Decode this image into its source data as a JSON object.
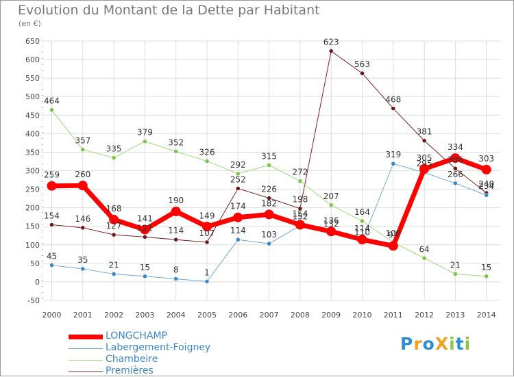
{
  "title": "Evolution du Montant de la Dette par Habitant",
  "subtitle": "(en €)",
  "logo": {
    "text": "ProXiti",
    "letters": [
      {
        "ch": "P",
        "color": "#2a8fd0"
      },
      {
        "ch": "r",
        "color": "#f0a020"
      },
      {
        "ch": "o",
        "color": "#2a8fd0"
      },
      {
        "ch": "X",
        "color": "#f0a020"
      },
      {
        "ch": "i",
        "color": "#8cc63f"
      },
      {
        "ch": "t",
        "color": "#2a8fd0"
      },
      {
        "ch": "i",
        "color": "#8cc63f"
      }
    ]
  },
  "chart_data": {
    "type": "line",
    "x": [
      "2000",
      "2001",
      "2002",
      "2003",
      "2004",
      "2005",
      "2006",
      "2007",
      "2008",
      "2009",
      "2010",
      "2011",
      "2012",
      "2013",
      "2014"
    ],
    "yticks": [
      "650",
      "600",
      "550",
      "500",
      "450",
      "400",
      "350",
      "300",
      "250",
      "200",
      "150",
      "100",
      "50",
      "0",
      "-50"
    ],
    "ylim": [
      -50,
      650
    ],
    "grid": true,
    "legend_position": "bottom-left",
    "series": [
      {
        "name": "Premières",
        "color": "#7a2020",
        "point_color": "#6a1818",
        "width": 1,
        "values": [
          154,
          146,
          127,
          121,
          114,
          107,
          252,
          226,
          198,
          623,
          563,
          468,
          381,
          306,
          240
        ],
        "labels": [
          "154",
          "146",
          "127",
          "121",
          "114",
          "107",
          "252",
          "226",
          "198",
          "623",
          "563",
          "468",
          "381",
          "306",
          "240"
        ]
      },
      {
        "name": "Chambeire",
        "color": "#99dd77",
        "point_color": "#7cc443",
        "width": 1,
        "values": [
          464,
          357,
          335,
          379,
          352,
          326,
          292,
          315,
          272,
          207,
          164,
          107,
          64,
          21,
          15
        ],
        "labels": [
          "464",
          "357",
          "335",
          "379",
          "352",
          "326",
          "292",
          "315",
          "272",
          "207",
          "164",
          "107",
          "64",
          "21",
          "15"
        ]
      },
      {
        "name": "Labergement-Foigney",
        "color": "#6ea8d8",
        "point_color": "#3b86c8",
        "width": 1,
        "values": [
          45,
          35,
          21,
          15,
          8,
          1,
          114,
          103,
          152,
          132,
          110,
          319,
          295,
          266,
          234
        ],
        "labels": [
          "45",
          "35",
          "21",
          "15",
          "8",
          "1",
          "114",
          "103",
          "152",
          "132",
          "110",
          "319",
          "295",
          "266",
          "234"
        ]
      },
      {
        "name": "LONGCHAMP",
        "color": "#ff0000",
        "point_color": "#ff0000",
        "width": 7,
        "values": [
          259,
          260,
          168,
          141,
          190,
          149,
          174,
          182,
          154,
          136,
          114,
          97,
          305,
          334,
          303
        ],
        "labels": [
          "259",
          "260",
          "168",
          "141",
          "190",
          "149",
          "174",
          "182",
          "154",
          "136",
          "114",
          "97",
          "305",
          "334",
          "303"
        ]
      }
    ],
    "legend": [
      {
        "name": "LONGCHAMP",
        "color": "#ff0000",
        "width": 7
      },
      {
        "name": "Labergement-Foigney",
        "color": "#6ea8d8",
        "width": 1
      },
      {
        "name": "Chambeire",
        "color": "#99dd77",
        "width": 1
      },
      {
        "name": "Premières",
        "color": "#7a2020",
        "width": 1
      }
    ]
  }
}
